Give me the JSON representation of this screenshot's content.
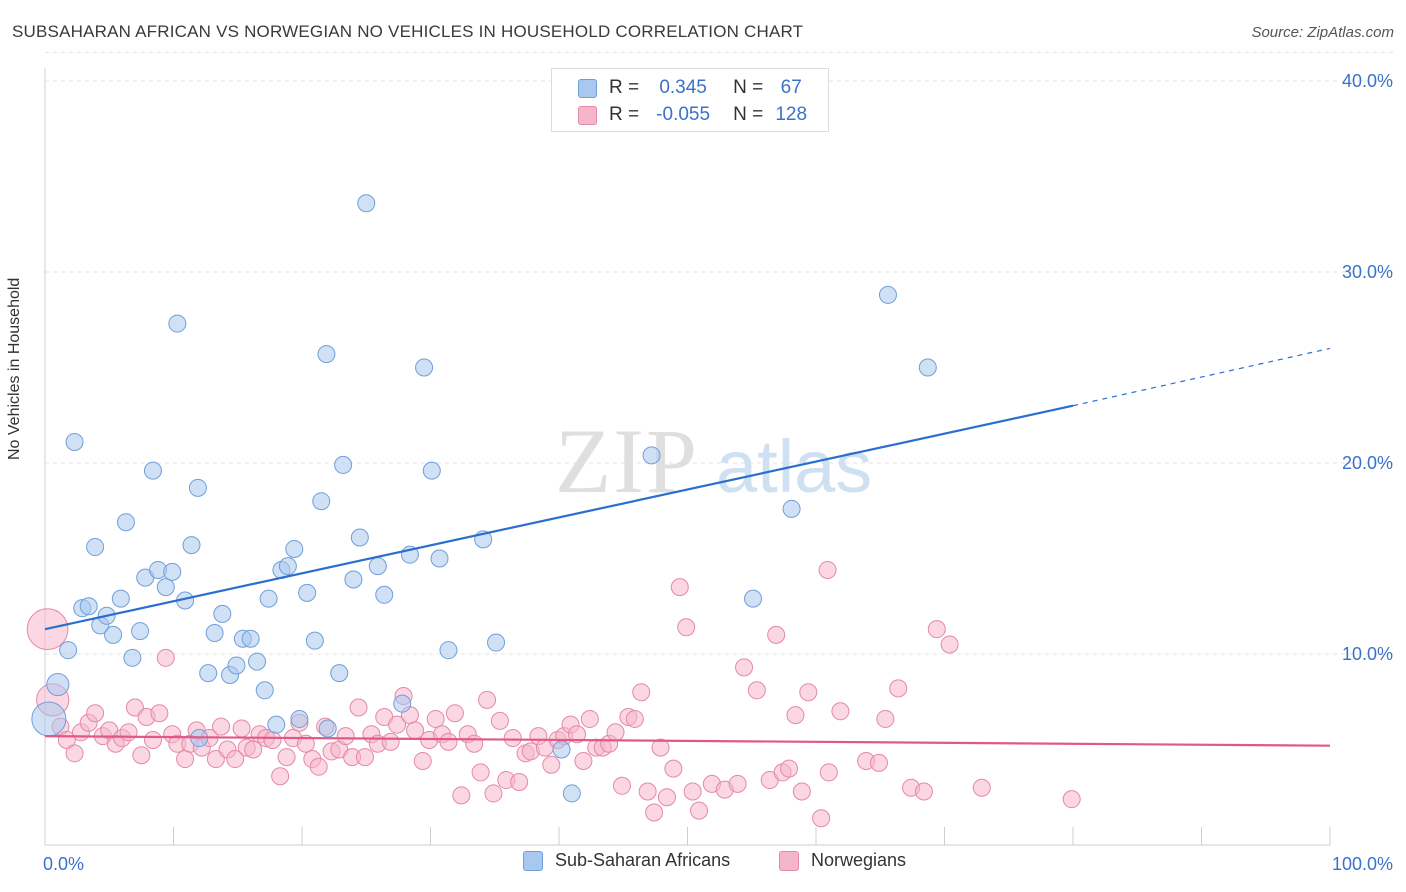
{
  "header": {
    "title": "SUBSAHARAN AFRICAN VS NORWEGIAN NO VEHICLES IN HOUSEHOLD CORRELATION CHART",
    "source": "Source: ZipAtlas.com"
  },
  "legend": {
    "rows": [
      {
        "r_label": "R =",
        "r_value": "0.345",
        "n_label": "N =",
        "n_value": "67"
      },
      {
        "r_label": "R =",
        "r_value": "-0.055",
        "n_label": "N =",
        "n_value": "128"
      }
    ],
    "bottom": [
      {
        "label": "Sub-Saharan Africans"
      },
      {
        "label": "Norwegians"
      }
    ]
  },
  "colors": {
    "blue_fill": "#a9c8ef",
    "blue_stroke": "#6f9fd9",
    "blue_line": "#2a6fcd",
    "pink_fill": "#f5b6ca",
    "pink_stroke": "#e589a6",
    "pink_line": "#e0578a",
    "tick_text": "#3a72c8",
    "grid": "#e3e3e3"
  },
  "chart_data": {
    "type": "scatter",
    "title": "SUBSAHARAN AFRICAN VS NORWEGIAN NO VEHICLES IN HOUSEHOLD CORRELATION CHART",
    "xlabel": "",
    "ylabel": "No Vehicles in Household",
    "xlim": [
      0,
      100
    ],
    "ylim": [
      0,
      42
    ],
    "x_tick_labels": [
      "0.0%",
      "100.0%"
    ],
    "y_ticks": [
      10,
      20,
      30,
      40
    ],
    "y_tick_labels": [
      "10.0%",
      "20.0%",
      "30.0%",
      "40.0%"
    ],
    "grid": true,
    "legend_position": "top-center",
    "watermark": "ZIPatlas",
    "series": [
      {
        "name": "Sub-Saharan Africans",
        "R": 0.345,
        "N": 67,
        "trend": {
          "x0": 0,
          "y0": 11.3,
          "x1": 80,
          "y1": 23.0,
          "dash_to_x": 100,
          "dash_to_y": 26.0
        },
        "points": [
          [
            0.3,
            6.6,
            2
          ],
          [
            1.0,
            8.4,
            1.3
          ],
          [
            1.8,
            10.2,
            1
          ],
          [
            2.3,
            21.1,
            1
          ],
          [
            2.9,
            12.4,
            1
          ],
          [
            3.4,
            12.5,
            1
          ],
          [
            3.9,
            15.6,
            1
          ],
          [
            4.3,
            11.5,
            1
          ],
          [
            4.8,
            12.0,
            1
          ],
          [
            5.3,
            11.0,
            1
          ],
          [
            5.9,
            12.9,
            1
          ],
          [
            6.3,
            16.9,
            1
          ],
          [
            6.8,
            9.8,
            1
          ],
          [
            7.4,
            11.2,
            1
          ],
          [
            7.8,
            14.0,
            1
          ],
          [
            8.4,
            19.6,
            1
          ],
          [
            8.8,
            14.4,
            1
          ],
          [
            9.4,
            13.5,
            1
          ],
          [
            9.9,
            14.3,
            1
          ],
          [
            10.3,
            27.3,
            1
          ],
          [
            10.9,
            12.8,
            1
          ],
          [
            11.4,
            15.7,
            1
          ],
          [
            11.9,
            18.7,
            1
          ],
          [
            12.7,
            9.0,
            1
          ],
          [
            13.2,
            11.1,
            1
          ],
          [
            13.8,
            12.1,
            1
          ],
          [
            14.4,
            8.9,
            1
          ],
          [
            14.9,
            9.4,
            1
          ],
          [
            15.4,
            10.8,
            1
          ],
          [
            16.0,
            10.8,
            1
          ],
          [
            16.5,
            9.6,
            1
          ],
          [
            17.1,
            8.1,
            1
          ],
          [
            17.4,
            12.9,
            1
          ],
          [
            18.0,
            6.3,
            1
          ],
          [
            18.4,
            14.4,
            1
          ],
          [
            18.9,
            14.6,
            1
          ],
          [
            19.4,
            15.5,
            1
          ],
          [
            19.8,
            6.6,
            1
          ],
          [
            20.4,
            13.2,
            1
          ],
          [
            21.0,
            10.7,
            1
          ],
          [
            21.5,
            18.0,
            1
          ],
          [
            21.9,
            25.7,
            1
          ],
          [
            22.9,
            9.0,
            1
          ],
          [
            23.2,
            19.9,
            1
          ],
          [
            24.0,
            13.9,
            1
          ],
          [
            24.5,
            16.1,
            1
          ],
          [
            25.0,
            33.6,
            1
          ],
          [
            25.9,
            14.6,
            1
          ],
          [
            26.4,
            13.1,
            1
          ],
          [
            27.8,
            7.4,
            1
          ],
          [
            28.4,
            15.2,
            1
          ],
          [
            29.5,
            25.0,
            1
          ],
          [
            30.1,
            19.6,
            1
          ],
          [
            30.7,
            15.0,
            1
          ],
          [
            31.4,
            10.2,
            1
          ],
          [
            34.1,
            16.0,
            1
          ],
          [
            35.1,
            10.6,
            1
          ],
          [
            40.2,
            5.0,
            1
          ],
          [
            41.0,
            2.7,
            1
          ],
          [
            40.4,
            37.8,
            1
          ],
          [
            47.2,
            20.4,
            1
          ],
          [
            55.1,
            12.9,
            1
          ],
          [
            58.1,
            17.6,
            1
          ],
          [
            65.6,
            28.8,
            1
          ],
          [
            68.7,
            25.0,
            1
          ],
          [
            22.0,
            6.1,
            1
          ],
          [
            12.0,
            5.6,
            1
          ]
        ]
      },
      {
        "name": "Norwegians",
        "R": -0.055,
        "N": 128,
        "trend": {
          "x0": 0,
          "y0": 5.7,
          "x1": 100,
          "y1": 5.2
        },
        "points": [
          [
            0.2,
            11.3,
            2.4
          ],
          [
            0.6,
            7.6,
            1.9
          ],
          [
            1.2,
            6.2,
            1
          ],
          [
            1.7,
            5.5,
            1
          ],
          [
            2.3,
            4.8,
            1
          ],
          [
            2.8,
            5.9,
            1
          ],
          [
            3.4,
            6.4,
            1
          ],
          [
            3.9,
            6.9,
            1
          ],
          [
            4.5,
            5.7,
            1
          ],
          [
            5.0,
            6.0,
            1
          ],
          [
            5.5,
            5.3,
            1
          ],
          [
            6.0,
            5.6,
            1
          ],
          [
            6.5,
            5.9,
            1
          ],
          [
            7.0,
            7.2,
            1
          ],
          [
            7.5,
            4.7,
            1
          ],
          [
            7.9,
            6.7,
            1
          ],
          [
            8.4,
            5.5,
            1
          ],
          [
            8.9,
            6.9,
            1
          ],
          [
            9.4,
            9.8,
            1
          ],
          [
            9.9,
            5.8,
            1
          ],
          [
            10.3,
            5.3,
            1
          ],
          [
            10.9,
            4.5,
            1
          ],
          [
            11.3,
            5.3,
            1
          ],
          [
            11.8,
            6.0,
            1
          ],
          [
            12.2,
            5.1,
            1
          ],
          [
            12.8,
            5.6,
            1
          ],
          [
            13.3,
            4.5,
            1
          ],
          [
            13.7,
            6.2,
            1
          ],
          [
            14.2,
            5.0,
            1
          ],
          [
            14.8,
            4.5,
            1
          ],
          [
            15.3,
            6.1,
            1
          ],
          [
            15.7,
            5.1,
            1
          ],
          [
            16.2,
            5.0,
            1
          ],
          [
            16.7,
            5.8,
            1
          ],
          [
            17.2,
            5.6,
            1
          ],
          [
            17.7,
            5.5,
            1
          ],
          [
            18.3,
            3.6,
            1
          ],
          [
            18.8,
            4.6,
            1
          ],
          [
            19.3,
            5.6,
            1
          ],
          [
            19.8,
            6.4,
            1
          ],
          [
            20.3,
            5.3,
            1
          ],
          [
            20.8,
            4.5,
            1
          ],
          [
            21.3,
            4.1,
            1
          ],
          [
            21.8,
            6.2,
            1
          ],
          [
            22.3,
            4.9,
            1
          ],
          [
            22.9,
            5.0,
            1
          ],
          [
            23.4,
            5.7,
            1
          ],
          [
            23.9,
            4.6,
            1
          ],
          [
            24.4,
            7.2,
            1
          ],
          [
            24.9,
            4.6,
            1
          ],
          [
            25.4,
            5.8,
            1
          ],
          [
            25.9,
            5.3,
            1
          ],
          [
            26.4,
            6.7,
            1
          ],
          [
            26.9,
            5.4,
            1
          ],
          [
            27.4,
            6.3,
            1
          ],
          [
            27.9,
            7.8,
            1
          ],
          [
            28.4,
            6.8,
            1
          ],
          [
            28.8,
            6.0,
            1
          ],
          [
            29.4,
            4.4,
            1
          ],
          [
            29.9,
            5.5,
            1
          ],
          [
            30.4,
            6.6,
            1
          ],
          [
            30.9,
            5.8,
            1
          ],
          [
            31.4,
            5.4,
            1
          ],
          [
            31.9,
            6.9,
            1
          ],
          [
            32.4,
            2.6,
            1
          ],
          [
            32.9,
            5.8,
            1
          ],
          [
            33.4,
            5.3,
            1
          ],
          [
            33.9,
            3.8,
            1
          ],
          [
            34.4,
            7.6,
            1
          ],
          [
            34.9,
            2.7,
            1
          ],
          [
            35.4,
            6.5,
            1
          ],
          [
            35.9,
            3.4,
            1
          ],
          [
            36.4,
            5.6,
            1
          ],
          [
            36.9,
            3.3,
            1
          ],
          [
            37.4,
            4.8,
            1
          ],
          [
            37.8,
            4.9,
            1
          ],
          [
            38.4,
            5.7,
            1
          ],
          [
            38.9,
            5.1,
            1
          ],
          [
            39.4,
            4.2,
            1
          ],
          [
            39.9,
            5.5,
            1
          ],
          [
            40.4,
            5.7,
            1
          ],
          [
            40.9,
            6.3,
            1
          ],
          [
            41.4,
            5.8,
            1
          ],
          [
            41.9,
            4.4,
            1
          ],
          [
            42.4,
            6.6,
            1
          ],
          [
            42.9,
            5.1,
            1
          ],
          [
            43.4,
            5.1,
            1
          ],
          [
            43.9,
            5.3,
            1
          ],
          [
            44.4,
            5.9,
            1
          ],
          [
            44.9,
            3.1,
            1
          ],
          [
            45.4,
            6.7,
            1
          ],
          [
            45.9,
            6.6,
            1
          ],
          [
            46.4,
            8.0,
            1
          ],
          [
            46.9,
            2.8,
            1
          ],
          [
            47.4,
            1.7,
            1
          ],
          [
            47.9,
            5.1,
            1
          ],
          [
            48.4,
            2.5,
            1
          ],
          [
            48.9,
            4.0,
            1
          ],
          [
            49.4,
            13.5,
            1
          ],
          [
            49.9,
            11.4,
            1
          ],
          [
            50.4,
            2.8,
            1
          ],
          [
            50.9,
            1.8,
            1
          ],
          [
            51.9,
            3.2,
            1
          ],
          [
            52.9,
            2.9,
            1
          ],
          [
            53.9,
            3.2,
            1
          ],
          [
            54.4,
            9.3,
            1
          ],
          [
            55.4,
            8.1,
            1
          ],
          [
            56.4,
            3.4,
            1
          ],
          [
            56.9,
            11.0,
            1
          ],
          [
            57.4,
            3.8,
            1
          ],
          [
            57.9,
            4.0,
            1
          ],
          [
            58.4,
            6.8,
            1
          ],
          [
            58.9,
            2.8,
            1
          ],
          [
            59.4,
            8.0,
            1
          ],
          [
            60.4,
            1.4,
            1
          ],
          [
            60.9,
            14.4,
            1
          ],
          [
            61.9,
            7.0,
            1
          ],
          [
            63.9,
            4.4,
            1
          ],
          [
            64.9,
            4.3,
            1
          ],
          [
            65.4,
            6.6,
            1
          ],
          [
            66.4,
            8.2,
            1
          ],
          [
            67.4,
            3.0,
            1
          ],
          [
            68.4,
            2.8,
            1
          ],
          [
            69.4,
            11.3,
            1
          ],
          [
            70.4,
            10.5,
            1
          ],
          [
            72.9,
            3.0,
            1
          ],
          [
            79.9,
            2.4,
            1
          ],
          [
            61.0,
            3.8,
            1
          ]
        ]
      }
    ]
  }
}
